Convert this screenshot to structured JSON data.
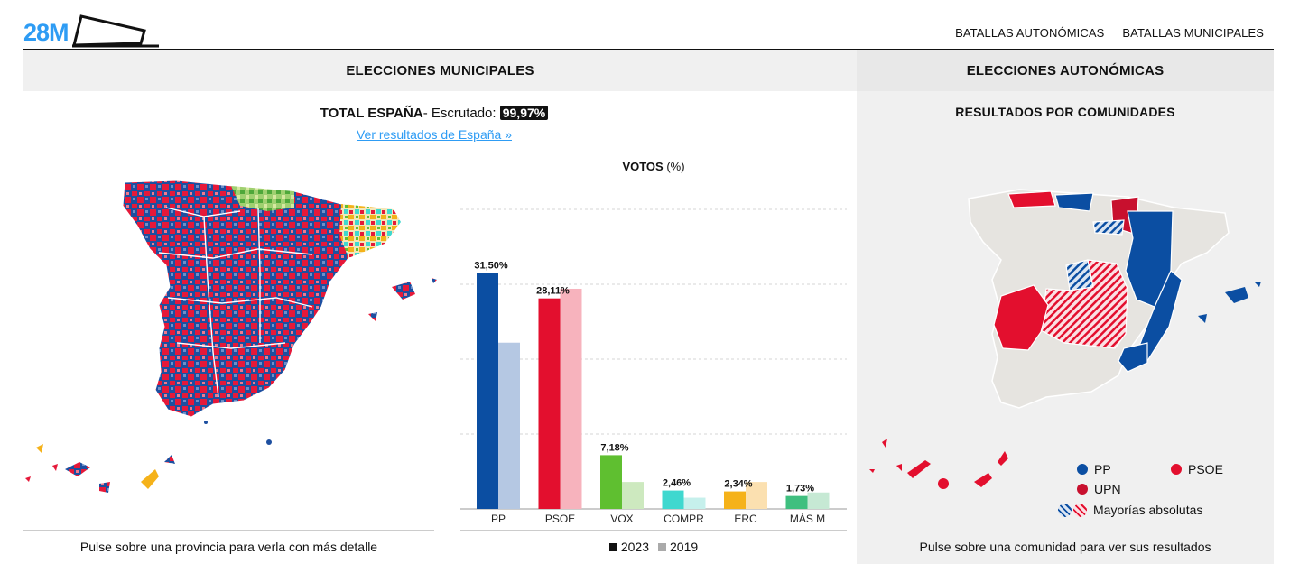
{
  "header": {
    "logo_text": "28M",
    "nav": [
      "BATALLAS AUTONÓMICAS",
      "BATALLAS MUNICIPALES"
    ]
  },
  "municipales": {
    "title": "ELECCIONES MUNICIPALES",
    "total_label": "TOTAL ESPAÑA",
    "escrutado_label": "- Escrutado:",
    "escrutado_value": "99,97%",
    "link_text": "Ver resultados de España »",
    "map_hint": "Pulse sobre una provincia para verla con más detalle"
  },
  "chart_data": {
    "type": "bar",
    "title": "VOTOS",
    "title_unit": "(%)",
    "categories": [
      "PP",
      "PSOE",
      "VOX",
      "COMPR",
      "ERC",
      "MÁS M"
    ],
    "series": [
      {
        "name": "2023",
        "values": [
          31.5,
          28.11,
          7.18,
          2.46,
          2.34,
          1.73
        ]
      },
      {
        "name": "2019",
        "values": [
          22.2,
          29.4,
          3.6,
          1.5,
          3.6,
          2.2
        ]
      }
    ],
    "value_labels": [
      "31,50%",
      "28,11%",
      "7,18%",
      "2,46%",
      "2,34%",
      "1,73%"
    ],
    "colors_2023": [
      "#0b4ea2",
      "#e30f2e",
      "#5fbf30",
      "#3fd8cf",
      "#f5b21a",
      "#3fbf7f"
    ],
    "colors_2019": [
      "#b5c8e3",
      "#f7b3bd",
      "#cde9bf",
      "#c6f0ec",
      "#fbe0b0",
      "#c6e9d4"
    ],
    "ylim": [
      0,
      40
    ],
    "gridlines": [
      10,
      20,
      30,
      40
    ],
    "legend": [
      {
        "label": "2023",
        "color": "#111111"
      },
      {
        "label": "2019",
        "color": "#aaaaaa"
      }
    ]
  },
  "autonomicas": {
    "title": "ELECCIONES AUTONÓMICAS",
    "subtitle": "RESULTADOS POR COMUNIDADES",
    "legend": {
      "pp": {
        "label": "PP",
        "color": "#0b4ea2"
      },
      "psoe": {
        "label": "PSOE",
        "color": "#e30f2e"
      },
      "upn": {
        "label": "UPN",
        "color": "#c8102e"
      },
      "absolute": {
        "label": "Mayorías absolutas"
      }
    },
    "map_hint": "Pulse sobre una comunidad para ver sus resultados"
  }
}
